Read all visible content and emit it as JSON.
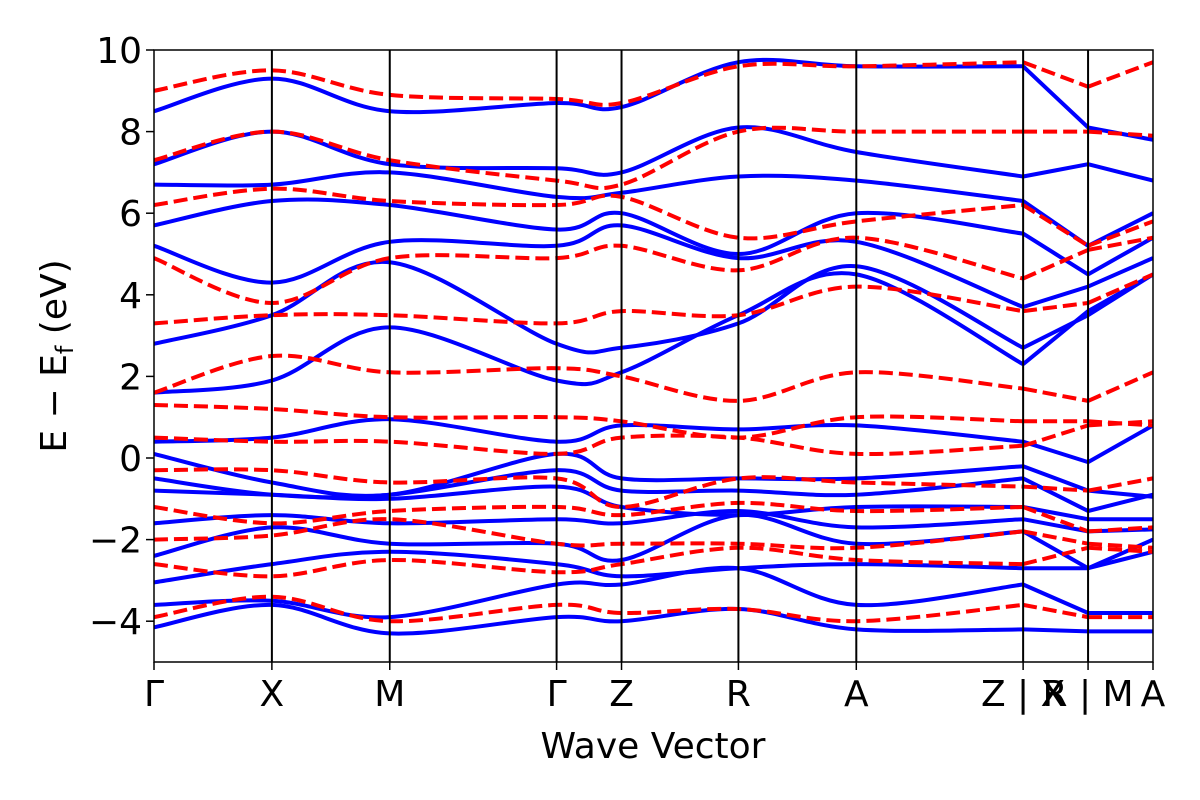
{
  "chart_data": {
    "type": "line",
    "xlabel": "Wave Vector",
    "ylabel_main": "E − E",
    "ylabel_sub": "f",
    "ylabel_unit": " (eV)",
    "ylim": [
      -5,
      10
    ],
    "yticks": [
      -4,
      -2,
      0,
      2,
      4,
      6,
      8,
      10
    ],
    "ytick_labels": [
      "−4",
      "−2",
      "0",
      "2",
      "4",
      "6",
      "8",
      "10"
    ],
    "xlim": [
      0,
      1
    ],
    "kpoints": [
      {
        "label": "Γ",
        "x": 0.0
      },
      {
        "label": "X",
        "x": 0.118
      },
      {
        "label": "M",
        "x": 0.236
      },
      {
        "label": "Γ",
        "x": 0.403
      },
      {
        "label": "Z",
        "x": 0.468
      },
      {
        "label": "R",
        "x": 0.585
      },
      {
        "label": "A",
        "x": 0.703
      },
      {
        "label": "Z | X",
        "x": 0.87
      },
      {
        "label": "R | M",
        "x": 0.935
      },
      {
        "label": "A",
        "x": 1.0
      }
    ],
    "segment_breaks": [
      0.87,
      0.935
    ],
    "grid": false,
    "legend": "none",
    "series": [
      {
        "style": "solid",
        "color": "#0000ff",
        "values": [
          [
            -4.15,
            -3.6,
            -4.3,
            -3.9,
            -4.0,
            -3.7,
            -4.2,
            -4.2,
            -4.25,
            -4.25
          ],
          [
            -3.6,
            -3.5,
            -3.9,
            -3.1,
            -3.1,
            -2.7,
            -3.6,
            -3.1,
            -3.8,
            -3.8
          ],
          [
            -3.05,
            -2.6,
            -2.3,
            -2.6,
            -2.9,
            -2.7,
            -2.6,
            -2.7,
            -2.7,
            -2.3
          ],
          [
            -2.4,
            -1.7,
            -2.1,
            -2.1,
            -2.5,
            -1.4,
            -2.1,
            -1.8,
            -2.7,
            -2.0
          ],
          [
            -1.6,
            -1.4,
            -1.6,
            -1.5,
            -1.6,
            -1.3,
            -1.7,
            -1.5,
            -1.8,
            -1.75
          ],
          [
            -0.8,
            -0.9,
            -1.0,
            -0.7,
            -1.2,
            -1.4,
            -1.2,
            -1.2,
            -1.5,
            -1.5
          ],
          [
            -0.5,
            -0.9,
            -0.9,
            -0.3,
            -0.8,
            -0.8,
            -0.9,
            -0.5,
            -1.3,
            -0.9
          ],
          [
            0.1,
            -0.6,
            -0.9,
            0.1,
            -0.5,
            -0.5,
            -0.5,
            -0.2,
            -0.8,
            -0.95
          ],
          [
            0.4,
            0.5,
            0.95,
            0.4,
            0.8,
            0.7,
            0.8,
            0.4,
            -0.1,
            0.8
          ],
          [
            1.6,
            1.9,
            3.2,
            1.9,
            2.1,
            3.5,
            4.5,
            2.3,
            3.6,
            4.5
          ],
          [
            2.8,
            3.5,
            4.8,
            2.8,
            2.7,
            3.3,
            4.7,
            2.7,
            3.5,
            4.5
          ],
          [
            5.2,
            4.3,
            5.3,
            5.2,
            5.7,
            4.9,
            5.3,
            3.7,
            4.2,
            4.9
          ],
          [
            5.7,
            6.3,
            6.2,
            5.6,
            6.0,
            5.0,
            6.0,
            5.5,
            4.5,
            5.4
          ],
          [
            6.7,
            6.7,
            7.0,
            6.4,
            6.5,
            6.9,
            6.8,
            6.3,
            5.2,
            6.0
          ],
          [
            7.2,
            8.0,
            7.2,
            7.1,
            7.0,
            8.1,
            7.5,
            6.9,
            7.2,
            6.8
          ],
          [
            8.5,
            9.3,
            8.5,
            8.7,
            8.6,
            9.7,
            9.6,
            9.6,
            8.1,
            7.8
          ]
        ]
      },
      {
        "style": "dashed",
        "color": "#ff0000",
        "values": [
          [
            -3.9,
            -3.4,
            -4.0,
            -3.6,
            -3.8,
            -3.7,
            -4.0,
            -3.6,
            -3.9,
            -3.9
          ],
          [
            -2.6,
            -2.9,
            -2.5,
            -2.8,
            -2.6,
            -2.2,
            -2.5,
            -2.6,
            -2.2,
            -2.3
          ],
          [
            -2.0,
            -1.9,
            -1.5,
            -2.1,
            -2.1,
            -2.1,
            -2.2,
            -1.8,
            -2.1,
            -2.2
          ],
          [
            -1.2,
            -1.6,
            -1.3,
            -1.2,
            -1.4,
            -1.1,
            -1.3,
            -1.2,
            -1.8,
            -1.7
          ],
          [
            -0.3,
            -0.3,
            -0.6,
            -0.5,
            -1.2,
            -0.5,
            -0.6,
            -0.7,
            -0.8,
            -0.5
          ],
          [
            0.5,
            0.4,
            0.4,
            0.1,
            0.5,
            0.5,
            0.1,
            0.3,
            0.8,
            0.9
          ],
          [
            1.3,
            1.2,
            1.0,
            1.0,
            0.9,
            0.5,
            1.0,
            0.9,
            0.9,
            0.8
          ],
          [
            1.6,
            2.5,
            2.1,
            2.2,
            2.0,
            1.4,
            2.1,
            1.7,
            1.4,
            2.1
          ],
          [
            3.3,
            3.5,
            3.5,
            3.3,
            3.6,
            3.5,
            4.2,
            3.6,
            3.8,
            4.5
          ],
          [
            4.9,
            3.8,
            4.9,
            4.9,
            5.2,
            4.6,
            5.4,
            4.4,
            5.1,
            5.4
          ],
          [
            6.2,
            6.6,
            6.3,
            6.2,
            6.4,
            5.4,
            5.8,
            6.2,
            5.2,
            5.8
          ],
          [
            7.3,
            8.0,
            7.3,
            6.8,
            6.7,
            8.0,
            8.0,
            8.0,
            8.0,
            7.9
          ],
          [
            9.0,
            9.5,
            8.9,
            8.8,
            8.7,
            9.6,
            9.6,
            9.7,
            9.1,
            9.7
          ]
        ]
      }
    ]
  }
}
